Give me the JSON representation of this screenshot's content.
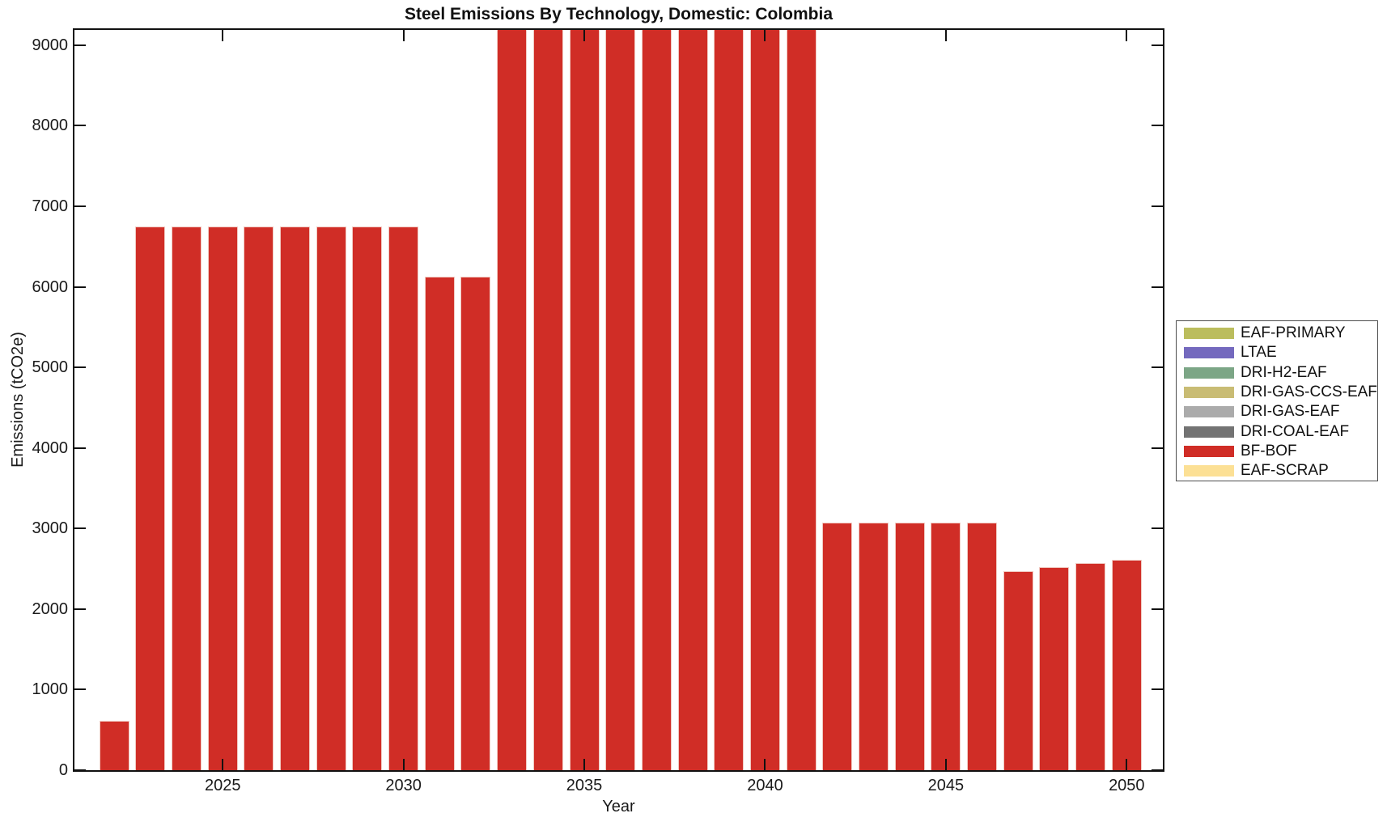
{
  "chart_data": {
    "type": "bar",
    "title": "Steel Emissions By Technology, Domestic: Colombia",
    "xlabel": "Year",
    "ylabel": "Emissions (tCO2e)",
    "x": [
      2022,
      2023,
      2024,
      2025,
      2026,
      2027,
      2028,
      2029,
      2030,
      2031,
      2032,
      2033,
      2034,
      2035,
      2036,
      2037,
      2038,
      2039,
      2040,
      2041,
      2042,
      2043,
      2044,
      2045,
      2046,
      2047,
      2048,
      2049,
      2050
    ],
    "series": [
      {
        "name": "BF-BOF",
        "color": "#d02d26",
        "values": [
          610,
          6750,
          6750,
          6750,
          6750,
          6750,
          6750,
          6750,
          6750,
          6130,
          6130,
          9250,
          9250,
          9250,
          9250,
          9250,
          9250,
          9250,
          9250,
          9250,
          3070,
          3070,
          3070,
          3070,
          3070,
          2470,
          2520,
          2570,
          2610
        ]
      }
    ],
    "values_above_axis_clipped": true,
    "xlim": [
      2020.9,
      2051.0
    ],
    "ylim": [
      0,
      9190
    ],
    "xticks": [
      2025,
      2030,
      2035,
      2040,
      2045,
      2050
    ],
    "yticks": [
      0,
      1000,
      2000,
      3000,
      4000,
      5000,
      6000,
      7000,
      8000,
      9000
    ],
    "grid": false,
    "legend": {
      "position": "right-outside",
      "entries": [
        {
          "label": "EAF-PRIMARY",
          "color": "#bbbd5d"
        },
        {
          "label": "LTAE",
          "color": "#7469be"
        },
        {
          "label": "DRI-H2-EAF",
          "color": "#7ca686"
        },
        {
          "label": "DRI-GAS-CCS-EAF",
          "color": "#c9bc74"
        },
        {
          "label": "DRI-GAS-EAF",
          "color": "#ababab"
        },
        {
          "label": "DRI-COAL-EAF",
          "color": "#737373"
        },
        {
          "label": "BF-BOF",
          "color": "#d02d26"
        },
        {
          "label": "EAF-SCRAP",
          "color": "#fce095"
        }
      ]
    }
  }
}
